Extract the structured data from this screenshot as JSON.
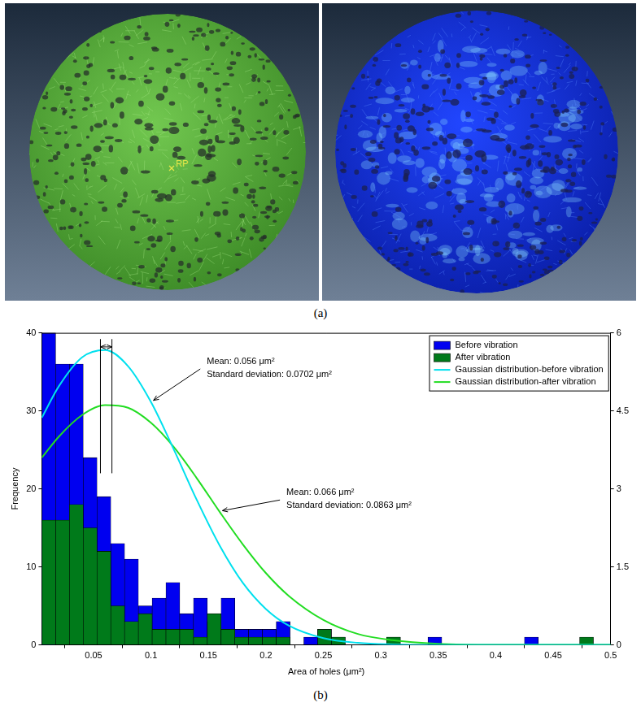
{
  "panel_a": {
    "label": "(a)",
    "reference_point_label": "RP"
  },
  "panel_b_label": "(b)",
  "chart_data": {
    "type": "histogram",
    "x_label": "Area of holes (μm²)",
    "y_label": "Frequency",
    "bins": [
      0.005,
      0.017,
      0.029,
      0.041,
      0.053,
      0.065,
      0.077,
      0.089,
      0.101,
      0.113,
      0.125,
      0.137,
      0.149,
      0.161,
      0.173,
      0.185,
      0.197,
      0.209,
      0.221,
      0.233,
      0.245,
      0.257,
      0.269,
      0.281,
      0.293,
      0.305,
      0.317,
      0.329,
      0.341,
      0.353,
      0.365,
      0.377,
      0.389,
      0.401,
      0.413,
      0.425,
      0.437,
      0.449,
      0.461,
      0.473,
      0.485
    ],
    "series": [
      {
        "name": "Before vibration",
        "type": "bar",
        "color": "#0000f0",
        "values": [
          40,
          36,
          36,
          24,
          19,
          13,
          11,
          5,
          6,
          8,
          4,
          6,
          3,
          6,
          2,
          2,
          2,
          3,
          0,
          1,
          2,
          1,
          0,
          0,
          0,
          1,
          0,
          0,
          1,
          0,
          0,
          0,
          0,
          0,
          0,
          1,
          0,
          0,
          0,
          0
        ]
      },
      {
        "name": "After vibration",
        "type": "bar",
        "color": "#007a1a",
        "values": [
          16,
          16,
          18,
          15,
          12,
          5,
          3,
          4,
          2,
          2,
          2,
          1,
          4,
          2,
          1,
          1,
          1,
          1,
          0,
          0,
          2,
          1,
          0,
          0,
          0,
          1,
          0,
          0,
          0,
          0,
          0,
          0,
          0,
          0,
          0,
          0,
          0,
          0,
          0,
          1
        ]
      },
      {
        "name": "Gaussian distribution-before vibration",
        "type": "line",
        "axis": "y2",
        "color": "#00e0ee",
        "x": [
          0.005,
          0.02,
          0.04,
          0.06,
          0.08,
          0.1,
          0.12,
          0.14,
          0.16,
          0.18,
          0.2,
          0.22,
          0.25,
          0.28,
          0.31,
          0.35,
          0.4,
          0.45,
          0.5
        ],
        "values": [
          4.37,
          4.98,
          5.53,
          5.67,
          5.36,
          4.67,
          3.75,
          2.78,
          1.9,
          1.19,
          0.69,
          0.37,
          0.13,
          0.04,
          0.01,
          0,
          0,
          0,
          0
        ],
        "mean": 0.056,
        "annotation": [
          "Mean: 0.056 μm²",
          "Standard deviation: 0.0702 μm²"
        ]
      },
      {
        "name": "Gaussian distribution-after vibration",
        "type": "line",
        "axis": "y2",
        "color": "#22dd22",
        "x": [
          0.005,
          0.02,
          0.04,
          0.06,
          0.08,
          0.1,
          0.12,
          0.14,
          0.16,
          0.18,
          0.2,
          0.22,
          0.25,
          0.28,
          0.31,
          0.35,
          0.4,
          0.45,
          0.5
        ],
        "values": [
          3.6,
          4.01,
          4.42,
          4.61,
          4.56,
          4.27,
          3.8,
          3.2,
          2.55,
          1.93,
          1.38,
          0.94,
          0.48,
          0.21,
          0.09,
          0.02,
          0,
          0,
          0
        ],
        "mean": 0.066,
        "annotation": [
          "Mean: 0.066 μm²",
          "Standard deviation: 0.0863 μm²"
        ]
      }
    ],
    "xlim": [
      0.005,
      0.5
    ],
    "xticks": [
      0.05,
      0.1,
      0.15,
      0.2,
      0.25,
      0.3,
      0.35,
      0.4,
      0.45,
      0.5
    ],
    "ylim": [
      0,
      40
    ],
    "yticks": [
      0,
      10,
      20,
      30,
      40
    ],
    "y2lim": [
      0,
      6
    ],
    "y2ticks": [
      0,
      1.5,
      3,
      4.5,
      6
    ],
    "grid": false,
    "legend": "upper right"
  }
}
